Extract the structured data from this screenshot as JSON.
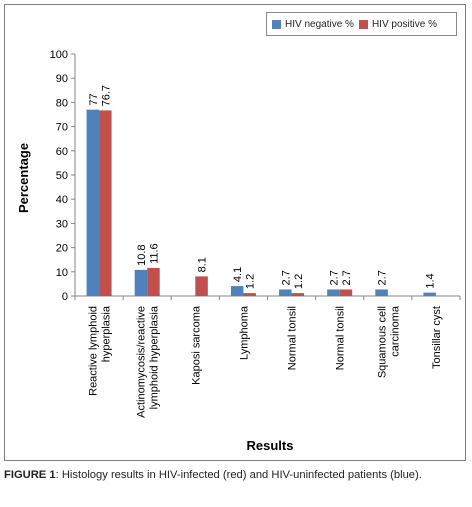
{
  "chart_data": {
    "type": "bar",
    "categories": [
      "Reactive lymphoid hyperplasia",
      "Actinomycosis/reactive lymphoid hyperplasia",
      "Kaposi sarcoma",
      "Lymphoma",
      "Normal tonsil",
      "Normal tonsil",
      "Squamous cell carcinoma",
      "Tonsillar cyst"
    ],
    "category_lines": [
      [
        "Reactive lymphoid",
        "hyperplasia"
      ],
      [
        "Actinomycosis/reactive",
        "lymphoid hyperplasia"
      ],
      [
        "Kaposi sarcoma"
      ],
      [
        "Lymphoma"
      ],
      [
        "Normal tonsil"
      ],
      [
        "Normal tonsil"
      ],
      [
        "Squamous cell",
        "carcinoma"
      ],
      [
        "Tonsillar cyst"
      ]
    ],
    "series": [
      {
        "name": "HIV negative %",
        "color": "#4f81bd",
        "values": [
          77,
          10.8,
          null,
          4.1,
          2.7,
          2.7,
          2.7,
          1.4
        ],
        "labels": [
          "77",
          "10.8",
          "",
          "4.1",
          "2.7",
          "2.7",
          "2.7",
          "1.4"
        ]
      },
      {
        "name": "HIV positive %",
        "color": "#c0504d",
        "values": [
          76.7,
          11.6,
          8.1,
          1.2,
          1.2,
          2.7,
          null,
          null
        ],
        "labels": [
          "76.7",
          "11.6",
          "8.1",
          "1.2",
          "1.2",
          "2.7",
          "",
          ""
        ]
      }
    ],
    "ylabel": "Percentage",
    "xlabel": "Results",
    "ylim": [
      0,
      100
    ],
    "yticks": [
      0,
      10,
      20,
      30,
      40,
      50,
      60,
      70,
      80,
      90,
      100
    ],
    "grid": false,
    "legend_position": "top-right"
  },
  "caption": {
    "label": "FIGURE 1",
    "text": ": Histology results in HIV-infected (red) and HIV-uninfected patients (blue)."
  }
}
